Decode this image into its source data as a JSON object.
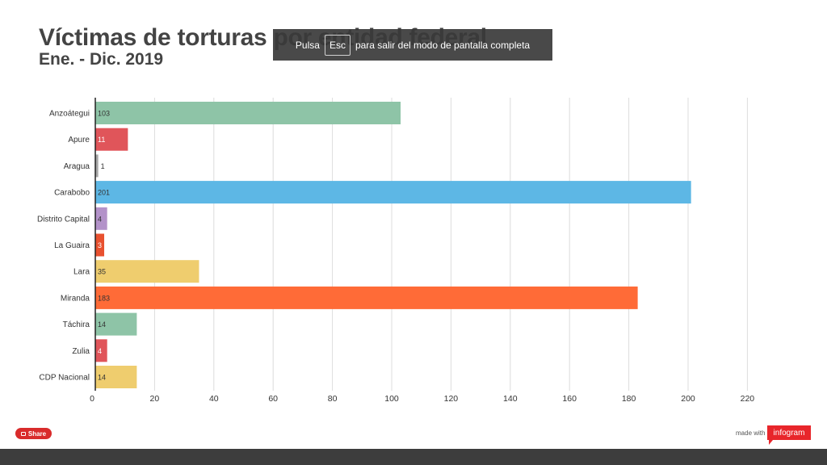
{
  "title": "Víctimas de torturas por entidad federal",
  "subtitle": "Ene. - Dic. 2019",
  "overlay": {
    "prefix": "Pulsa",
    "key": "Esc",
    "suffix": "para salir del modo de pantalla completa"
  },
  "share_label": "Share",
  "made_with": "made with",
  "brand": "infogram",
  "chart_data": {
    "type": "bar",
    "orientation": "horizontal",
    "title": "Víctimas de torturas por entidad federal",
    "subtitle": "Ene. - Dic. 2019",
    "categories": [
      "Anzoátegui",
      "Apure",
      "Aragua",
      "Carabobo",
      "Distrito Capital",
      "La Guaira",
      "Lara",
      "Miranda",
      "Táchira",
      "Zulia",
      "CDP Nacional"
    ],
    "values": [
      103,
      11,
      1,
      201,
      4,
      3,
      35,
      183,
      14,
      4,
      14
    ],
    "colors": [
      "#8ec4a7",
      "#e0555a",
      "#a6a6a6",
      "#5db7e5",
      "#b392c9",
      "#e8512f",
      "#efcd6e",
      "#ff6b37",
      "#8ec4a7",
      "#e0555a",
      "#efcd6e"
    ],
    "xlim": [
      0,
      220
    ],
    "xticks": [
      0,
      20,
      40,
      60,
      80,
      100,
      120,
      140,
      160,
      180,
      200,
      220
    ],
    "grid": true,
    "xlabel": "",
    "ylabel": ""
  }
}
